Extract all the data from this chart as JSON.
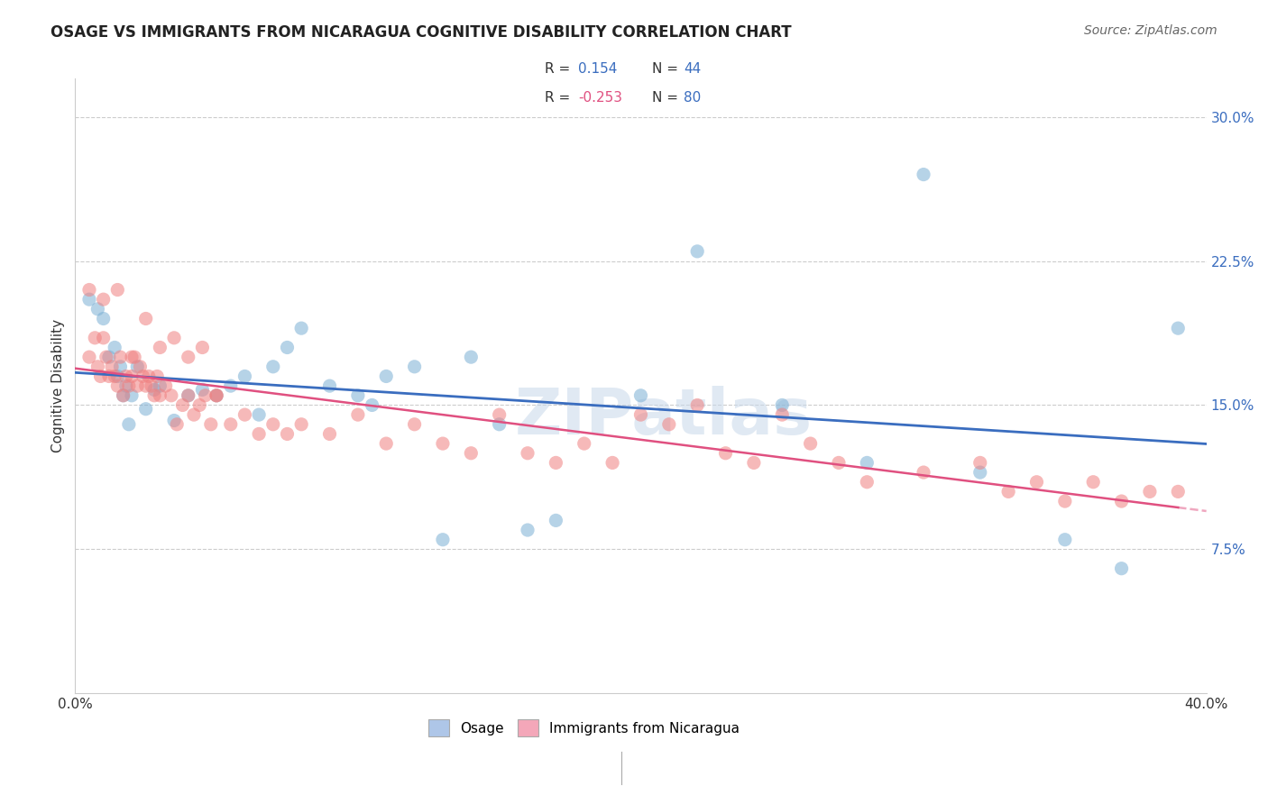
{
  "title": "OSAGE VS IMMIGRANTS FROM NICARAGUA COGNITIVE DISABILITY CORRELATION CHART",
  "source": "Source: ZipAtlas.com",
  "ylabel": "Cognitive Disability",
  "xlim": [
    0.0,
    0.4
  ],
  "ylim": [
    0.0,
    0.32
  ],
  "osage_R": 0.154,
  "osage_N": 44,
  "nicaragua_R": -0.253,
  "nicaragua_N": 80,
  "legend_box_color_osage": "#aec6e8",
  "legend_box_color_nicaragua": "#f4a7b9",
  "osage_color": "#7bafd4",
  "nicaragua_color": "#f08080",
  "osage_line_color": "#3a6dbf",
  "nicaragua_line_color": "#e05080",
  "watermark": "ZIPatlas",
  "osage_x": [
    0.005,
    0.008,
    0.01,
    0.012,
    0.014,
    0.015,
    0.016,
    0.017,
    0.018,
    0.019,
    0.02,
    0.022,
    0.025,
    0.028,
    0.03,
    0.035,
    0.04,
    0.045,
    0.05,
    0.055,
    0.06,
    0.065,
    0.07,
    0.075,
    0.08,
    0.09,
    0.1,
    0.105,
    0.11,
    0.12,
    0.13,
    0.14,
    0.15,
    0.16,
    0.17,
    0.2,
    0.22,
    0.25,
    0.28,
    0.3,
    0.32,
    0.35,
    0.37,
    0.39
  ],
  "osage_y": [
    0.205,
    0.2,
    0.195,
    0.175,
    0.18,
    0.165,
    0.17,
    0.155,
    0.16,
    0.14,
    0.155,
    0.17,
    0.148,
    0.158,
    0.16,
    0.142,
    0.155,
    0.158,
    0.155,
    0.16,
    0.165,
    0.145,
    0.17,
    0.18,
    0.19,
    0.16,
    0.155,
    0.15,
    0.165,
    0.17,
    0.08,
    0.175,
    0.14,
    0.085,
    0.09,
    0.155,
    0.23,
    0.15,
    0.12,
    0.27,
    0.115,
    0.08,
    0.065,
    0.19
  ],
  "nicaragua_x": [
    0.005,
    0.007,
    0.008,
    0.009,
    0.01,
    0.011,
    0.012,
    0.013,
    0.014,
    0.015,
    0.016,
    0.017,
    0.018,
    0.019,
    0.02,
    0.021,
    0.022,
    0.023,
    0.024,
    0.025,
    0.026,
    0.027,
    0.028,
    0.029,
    0.03,
    0.032,
    0.034,
    0.036,
    0.038,
    0.04,
    0.042,
    0.044,
    0.046,
    0.048,
    0.05,
    0.055,
    0.06,
    0.065,
    0.07,
    0.075,
    0.08,
    0.09,
    0.1,
    0.11,
    0.12,
    0.13,
    0.14,
    0.15,
    0.16,
    0.17,
    0.18,
    0.19,
    0.2,
    0.21,
    0.22,
    0.23,
    0.24,
    0.25,
    0.26,
    0.27,
    0.28,
    0.3,
    0.32,
    0.33,
    0.34,
    0.35,
    0.36,
    0.37,
    0.38,
    0.39,
    0.005,
    0.01,
    0.015,
    0.02,
    0.025,
    0.03,
    0.035,
    0.04,
    0.045,
    0.05
  ],
  "nicaragua_y": [
    0.175,
    0.185,
    0.17,
    0.165,
    0.185,
    0.175,
    0.165,
    0.17,
    0.165,
    0.16,
    0.175,
    0.155,
    0.165,
    0.16,
    0.165,
    0.175,
    0.16,
    0.17,
    0.165,
    0.16,
    0.165,
    0.16,
    0.155,
    0.165,
    0.155,
    0.16,
    0.155,
    0.14,
    0.15,
    0.155,
    0.145,
    0.15,
    0.155,
    0.14,
    0.155,
    0.14,
    0.145,
    0.135,
    0.14,
    0.135,
    0.14,
    0.135,
    0.145,
    0.13,
    0.14,
    0.13,
    0.125,
    0.145,
    0.125,
    0.12,
    0.13,
    0.12,
    0.145,
    0.14,
    0.15,
    0.125,
    0.12,
    0.145,
    0.13,
    0.12,
    0.11,
    0.115,
    0.12,
    0.105,
    0.11,
    0.1,
    0.11,
    0.1,
    0.105,
    0.105,
    0.21,
    0.205,
    0.21,
    0.175,
    0.195,
    0.18,
    0.185,
    0.175,
    0.18,
    0.155
  ]
}
